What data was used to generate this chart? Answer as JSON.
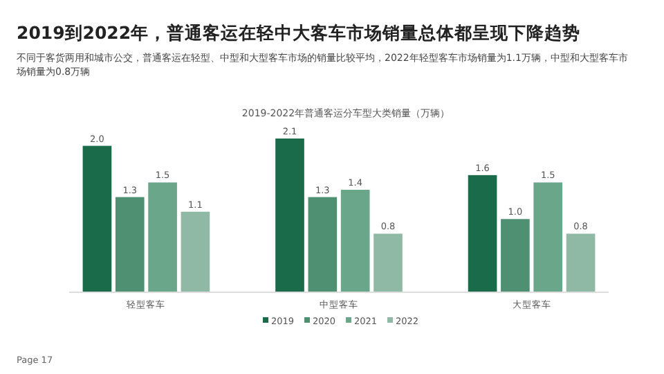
{
  "chart_data": {
    "type": "bar",
    "title": "2019-2022年普通客运分车型大类销量（万辆）",
    "subtitle": "2019到2022年，普通客运在轻中大客车市场销量总体都呈现下降趋势",
    "annotations": [
      "不同于客货两用和城市公交，普通客运在轻型、中型和大型客车市场的销量比较平均，2022年轻型客车市场销量为1.1万辆，中型和大型客车市场销量为0.8万辆",
      "Page 17"
    ],
    "categories": [
      "轻型客车",
      "中型客车",
      "大型客车"
    ],
    "series": [
      {
        "name": "2019",
        "color": "#1a6b4a",
        "values": [
          2.0,
          2.1,
          1.6
        ],
        "value_labels": [
          "2.0",
          "2.1",
          "1.6"
        ]
      },
      {
        "name": "2020",
        "color": "#4f9072",
        "values": [
          1.3,
          1.3,
          1.0
        ],
        "value_labels": [
          "1.3",
          "1.3",
          "1.0"
        ]
      },
      {
        "name": "2021",
        "color": "#6aa68a",
        "values": [
          1.5,
          1.4,
          1.5
        ],
        "value_labels": [
          "1.5",
          "1.4",
          "1.5"
        ]
      },
      {
        "name": "2022",
        "color": "#8fb9a4",
        "values": [
          1.1,
          0.8,
          0.8
        ],
        "value_labels": [
          "1.1",
          "0.8",
          "0.8"
        ]
      }
    ],
    "legend": "bottom"
  }
}
